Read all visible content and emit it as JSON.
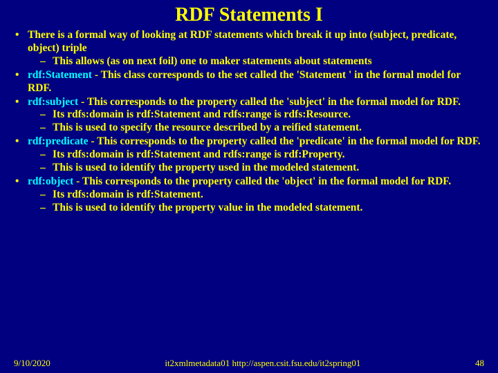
{
  "title": "RDF Statements I",
  "bullets": {
    "b1": "There is a formal way of looking at RDF statements which break it up into (subject, predicate, object) triple",
    "b1_s1": "This allows (as on next foil) one to maker statements about statements",
    "b2_term": "rdf:Statement",
    "b2_rest": " - This class corresponds to the set called the 'Statement ' in the formal model for RDF.",
    "b3_term": "rdf:subject",
    "b3_rest": " - This corresponds to the property called the 'subject' in the formal model for RDF.",
    "b3_s1": "Its rdfs:domain is rdf:Statement and rdfs:range is rdfs:Resource.",
    "b3_s2": "This is used to specify the resource described by a reified statement.",
    "b4_term": "rdf:predicate",
    "b4_rest": " - This corresponds to the property called the 'predicate' in the formal model for RDF.",
    "b4_s1": "Its rdfs:domain is rdf:Statement and rdfs:range is rdf:Property.",
    "b4_s2": "This is used to identify the property used in the modeled statement.",
    "b5_term": "rdf:object",
    "b5_rest": " - This corresponds to the property called the 'object' in the formal model for RDF.",
    "b5_s1": "Its rdfs:domain is rdf:Statement.",
    "b5_s2": "This is used to identify the property value in the modeled statement."
  },
  "footer": {
    "date": "9/10/2020",
    "center": "it2xmlmetadata01  http://aspen.csit.fsu.edu/it2spring01",
    "page": "48"
  },
  "colors": {
    "background": "#000080",
    "text": "#ffff00",
    "accent": "#00ffff"
  }
}
